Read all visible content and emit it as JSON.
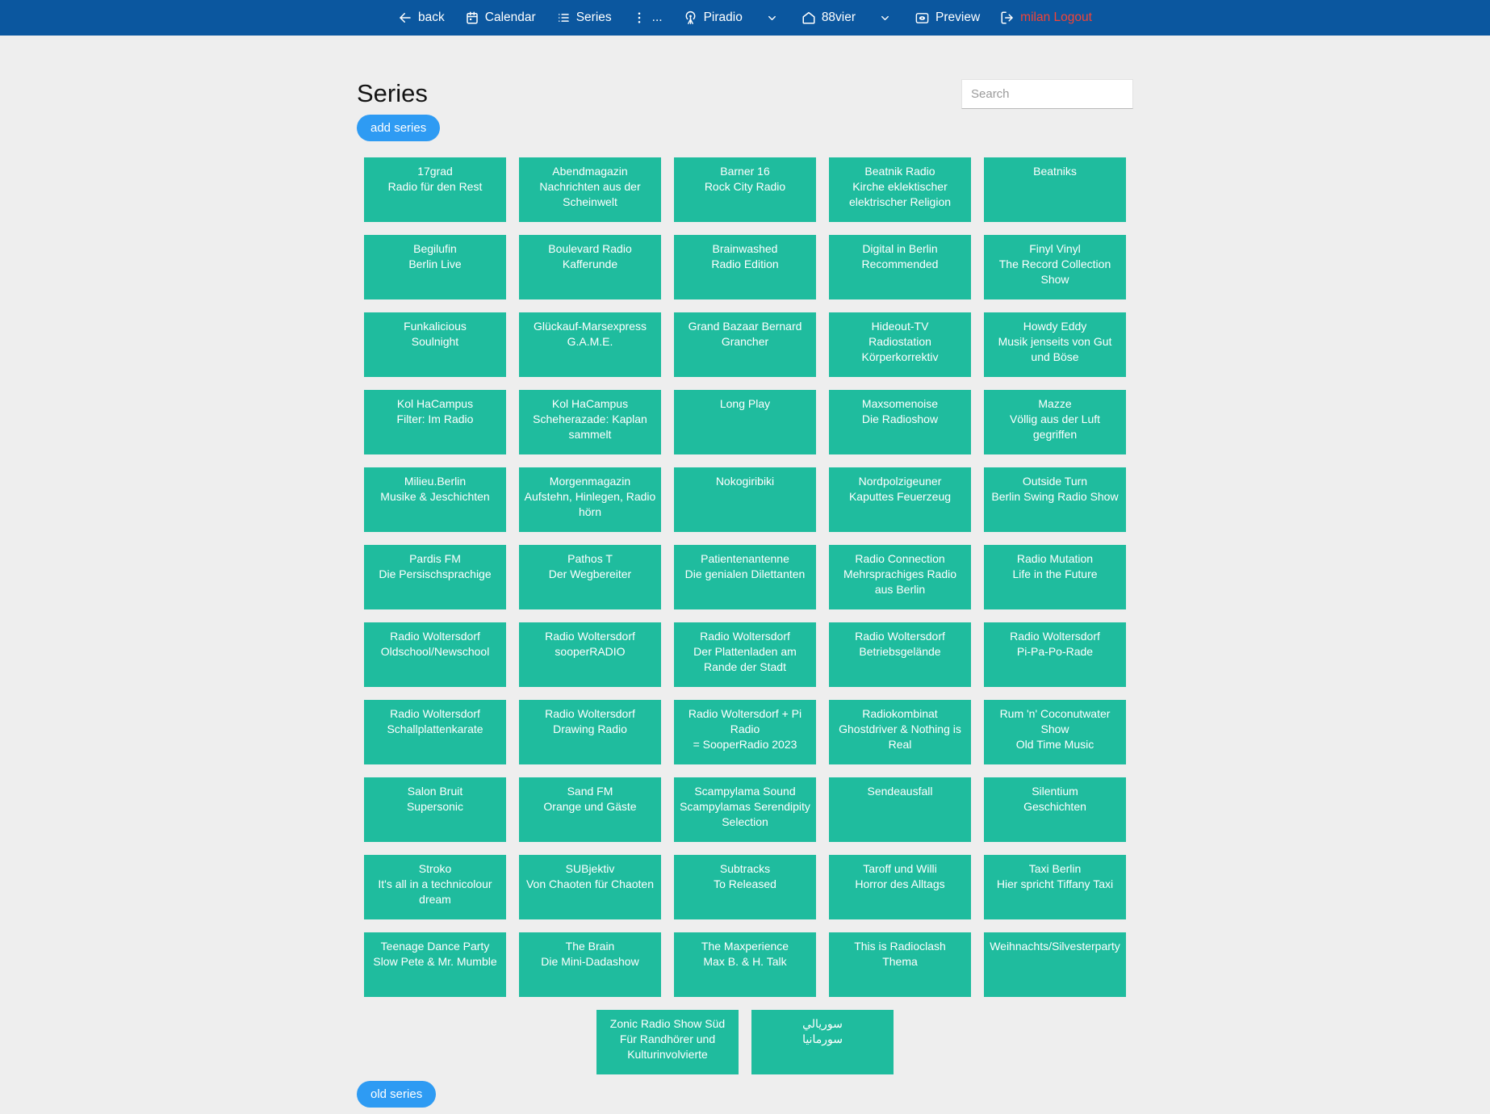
{
  "navbar": {
    "back_label": "back",
    "calendar_label": "Calendar",
    "series_label": "Series",
    "more_label": "...",
    "piradio_label": "Piradio",
    "station_label": "88vier",
    "preview_label": "Preview",
    "logout_label": "milan Logout"
  },
  "header": {
    "title": "Series",
    "search_placeholder": "Search",
    "search_value": "",
    "add_series_label": "add series",
    "old_series_label": "old series"
  },
  "colors": {
    "navbar_bg": "#0b579f",
    "page_bg": "#eeeeee",
    "card_bg": "#1fbc9e",
    "button_bg": "#2e9bf3",
    "logout_text": "#f44336"
  },
  "icons": {
    "back": "arrow-left-icon",
    "calendar": "calendar-icon",
    "series": "list-icon",
    "more": "vertical-dots-icon",
    "piradio": "antenna-icon",
    "dropdown": "chevron-down-icon",
    "station": "home-icon",
    "preview": "screen-eye-icon",
    "logout": "logout-icon"
  },
  "series": [
    {
      "title": "17grad",
      "subtitle": "Radio für den Rest"
    },
    {
      "title": "Abendmagazin",
      "subtitle": "Nachrichten aus der Scheinwelt"
    },
    {
      "title": "Barner 16",
      "subtitle": "Rock City Radio"
    },
    {
      "title": "Beatnik Radio",
      "subtitle": "Kirche eklektischer elektrischer Religion"
    },
    {
      "title": "Beatniks",
      "subtitle": ""
    },
    {
      "title": "Begilufin",
      "subtitle": "Berlin Live"
    },
    {
      "title": "Boulevard Radio",
      "subtitle": "Kafferunde"
    },
    {
      "title": "Brainwashed",
      "subtitle": "Radio Edition"
    },
    {
      "title": "Digital in Berlin",
      "subtitle": "Recommended"
    },
    {
      "title": "Finyl Vinyl",
      "subtitle": "The Record Collection Show"
    },
    {
      "title": "Funkalicious",
      "subtitle": "Soulnight"
    },
    {
      "title": "Glückauf-Marsexpress",
      "subtitle": "G.A.M.E."
    },
    {
      "title": "Grand Bazaar Bernard",
      "subtitle": "Grancher"
    },
    {
      "title": "Hideout-TV",
      "subtitle": "Radiostation Körperkorrektiv"
    },
    {
      "title": "Howdy Eddy",
      "subtitle": "Musik jenseits von Gut und Böse"
    },
    {
      "title": "Kol HaCampus",
      "subtitle": "Filter: Im Radio"
    },
    {
      "title": "Kol HaCampus",
      "subtitle": "Scheherazade: Kaplan sammelt"
    },
    {
      "title": "Long Play",
      "subtitle": ""
    },
    {
      "title": "Maxsomenoise",
      "subtitle": "Die Radioshow"
    },
    {
      "title": "Mazze",
      "subtitle": "Völlig aus der Luft gegriffen"
    },
    {
      "title": "Milieu.Berlin",
      "subtitle": "Musike & Jeschichten"
    },
    {
      "title": "Morgenmagazin",
      "subtitle": "Aufstehn, Hinlegen, Radio hörn"
    },
    {
      "title": "Nokogiribiki",
      "subtitle": ""
    },
    {
      "title": "Nordpolzigeuner",
      "subtitle": "Kaputtes Feuerzeug"
    },
    {
      "title": "Outside Turn",
      "subtitle": "Berlin Swing Radio Show"
    },
    {
      "title": "Pardis FM",
      "subtitle": "Die Persischsprachige"
    },
    {
      "title": "Pathos T",
      "subtitle": "Der Wegbereiter"
    },
    {
      "title": "Patientenantenne",
      "subtitle": "Die genialen Dilettanten"
    },
    {
      "title": "Radio Connection",
      "subtitle": "Mehrsprachiges Radio aus Berlin"
    },
    {
      "title": "Radio Mutation",
      "subtitle": "Life in the Future"
    },
    {
      "title": "Radio Woltersdorf",
      "subtitle": "Oldschool/Newschool"
    },
    {
      "title": "Radio Woltersdorf",
      "subtitle": "sooperRADIO"
    },
    {
      "title": "Radio Woltersdorf",
      "subtitle": "Der Plattenladen am Rande der Stadt"
    },
    {
      "title": "Radio Woltersdorf",
      "subtitle": "Betriebsgelände"
    },
    {
      "title": "Radio Woltersdorf",
      "subtitle": "Pi-Pa-Po-Rade"
    },
    {
      "title": "Radio Woltersdorf",
      "subtitle": "Schallplattenkarate"
    },
    {
      "title": "Radio Woltersdorf",
      "subtitle": "Drawing Radio"
    },
    {
      "title": "Radio Woltersdorf + Pi Radio",
      "subtitle": "= SooperRadio 2023"
    },
    {
      "title": "Radiokombinat",
      "subtitle": "Ghostdriver & Nothing is Real"
    },
    {
      "title": "Rum 'n' Coconutwater Show",
      "subtitle": "Old Time Music"
    },
    {
      "title": "Salon Bruit",
      "subtitle": "Supersonic"
    },
    {
      "title": "Sand FM",
      "subtitle": "Orange und Gäste"
    },
    {
      "title": "Scampylama Sound",
      "subtitle": "Scampylamas Serendipity Selection"
    },
    {
      "title": "Sendeausfall",
      "subtitle": ""
    },
    {
      "title": "Silentium",
      "subtitle": "Geschichten"
    },
    {
      "title": "Stroko",
      "subtitle": "It's all in a technicolour dream"
    },
    {
      "title": "SUBjektiv",
      "subtitle": "Von Chaoten für Chaoten"
    },
    {
      "title": "Subtracks",
      "subtitle": "To Released"
    },
    {
      "title": "Taroff und Willi",
      "subtitle": "Horror des Alltags"
    },
    {
      "title": "Taxi Berlin",
      "subtitle": "Hier spricht Tiffany Taxi"
    },
    {
      "title": "Teenage Dance Party",
      "subtitle": "Slow Pete & Mr. Mumble"
    },
    {
      "title": "The Brain",
      "subtitle": "Die Mini-Dadashow"
    },
    {
      "title": "The Maxperience",
      "subtitle": "Max B. & H. Talk"
    },
    {
      "title": "This is Radioclash",
      "subtitle": "Thema"
    },
    {
      "title": "Weihnachts/Silvesterparty",
      "subtitle": ""
    },
    {
      "title": "Zonic Radio Show Süd",
      "subtitle": "Für Randhörer und Kulturinvolvierte"
    },
    {
      "title": "سوريالي",
      "subtitle": "سورمانيا"
    }
  ]
}
